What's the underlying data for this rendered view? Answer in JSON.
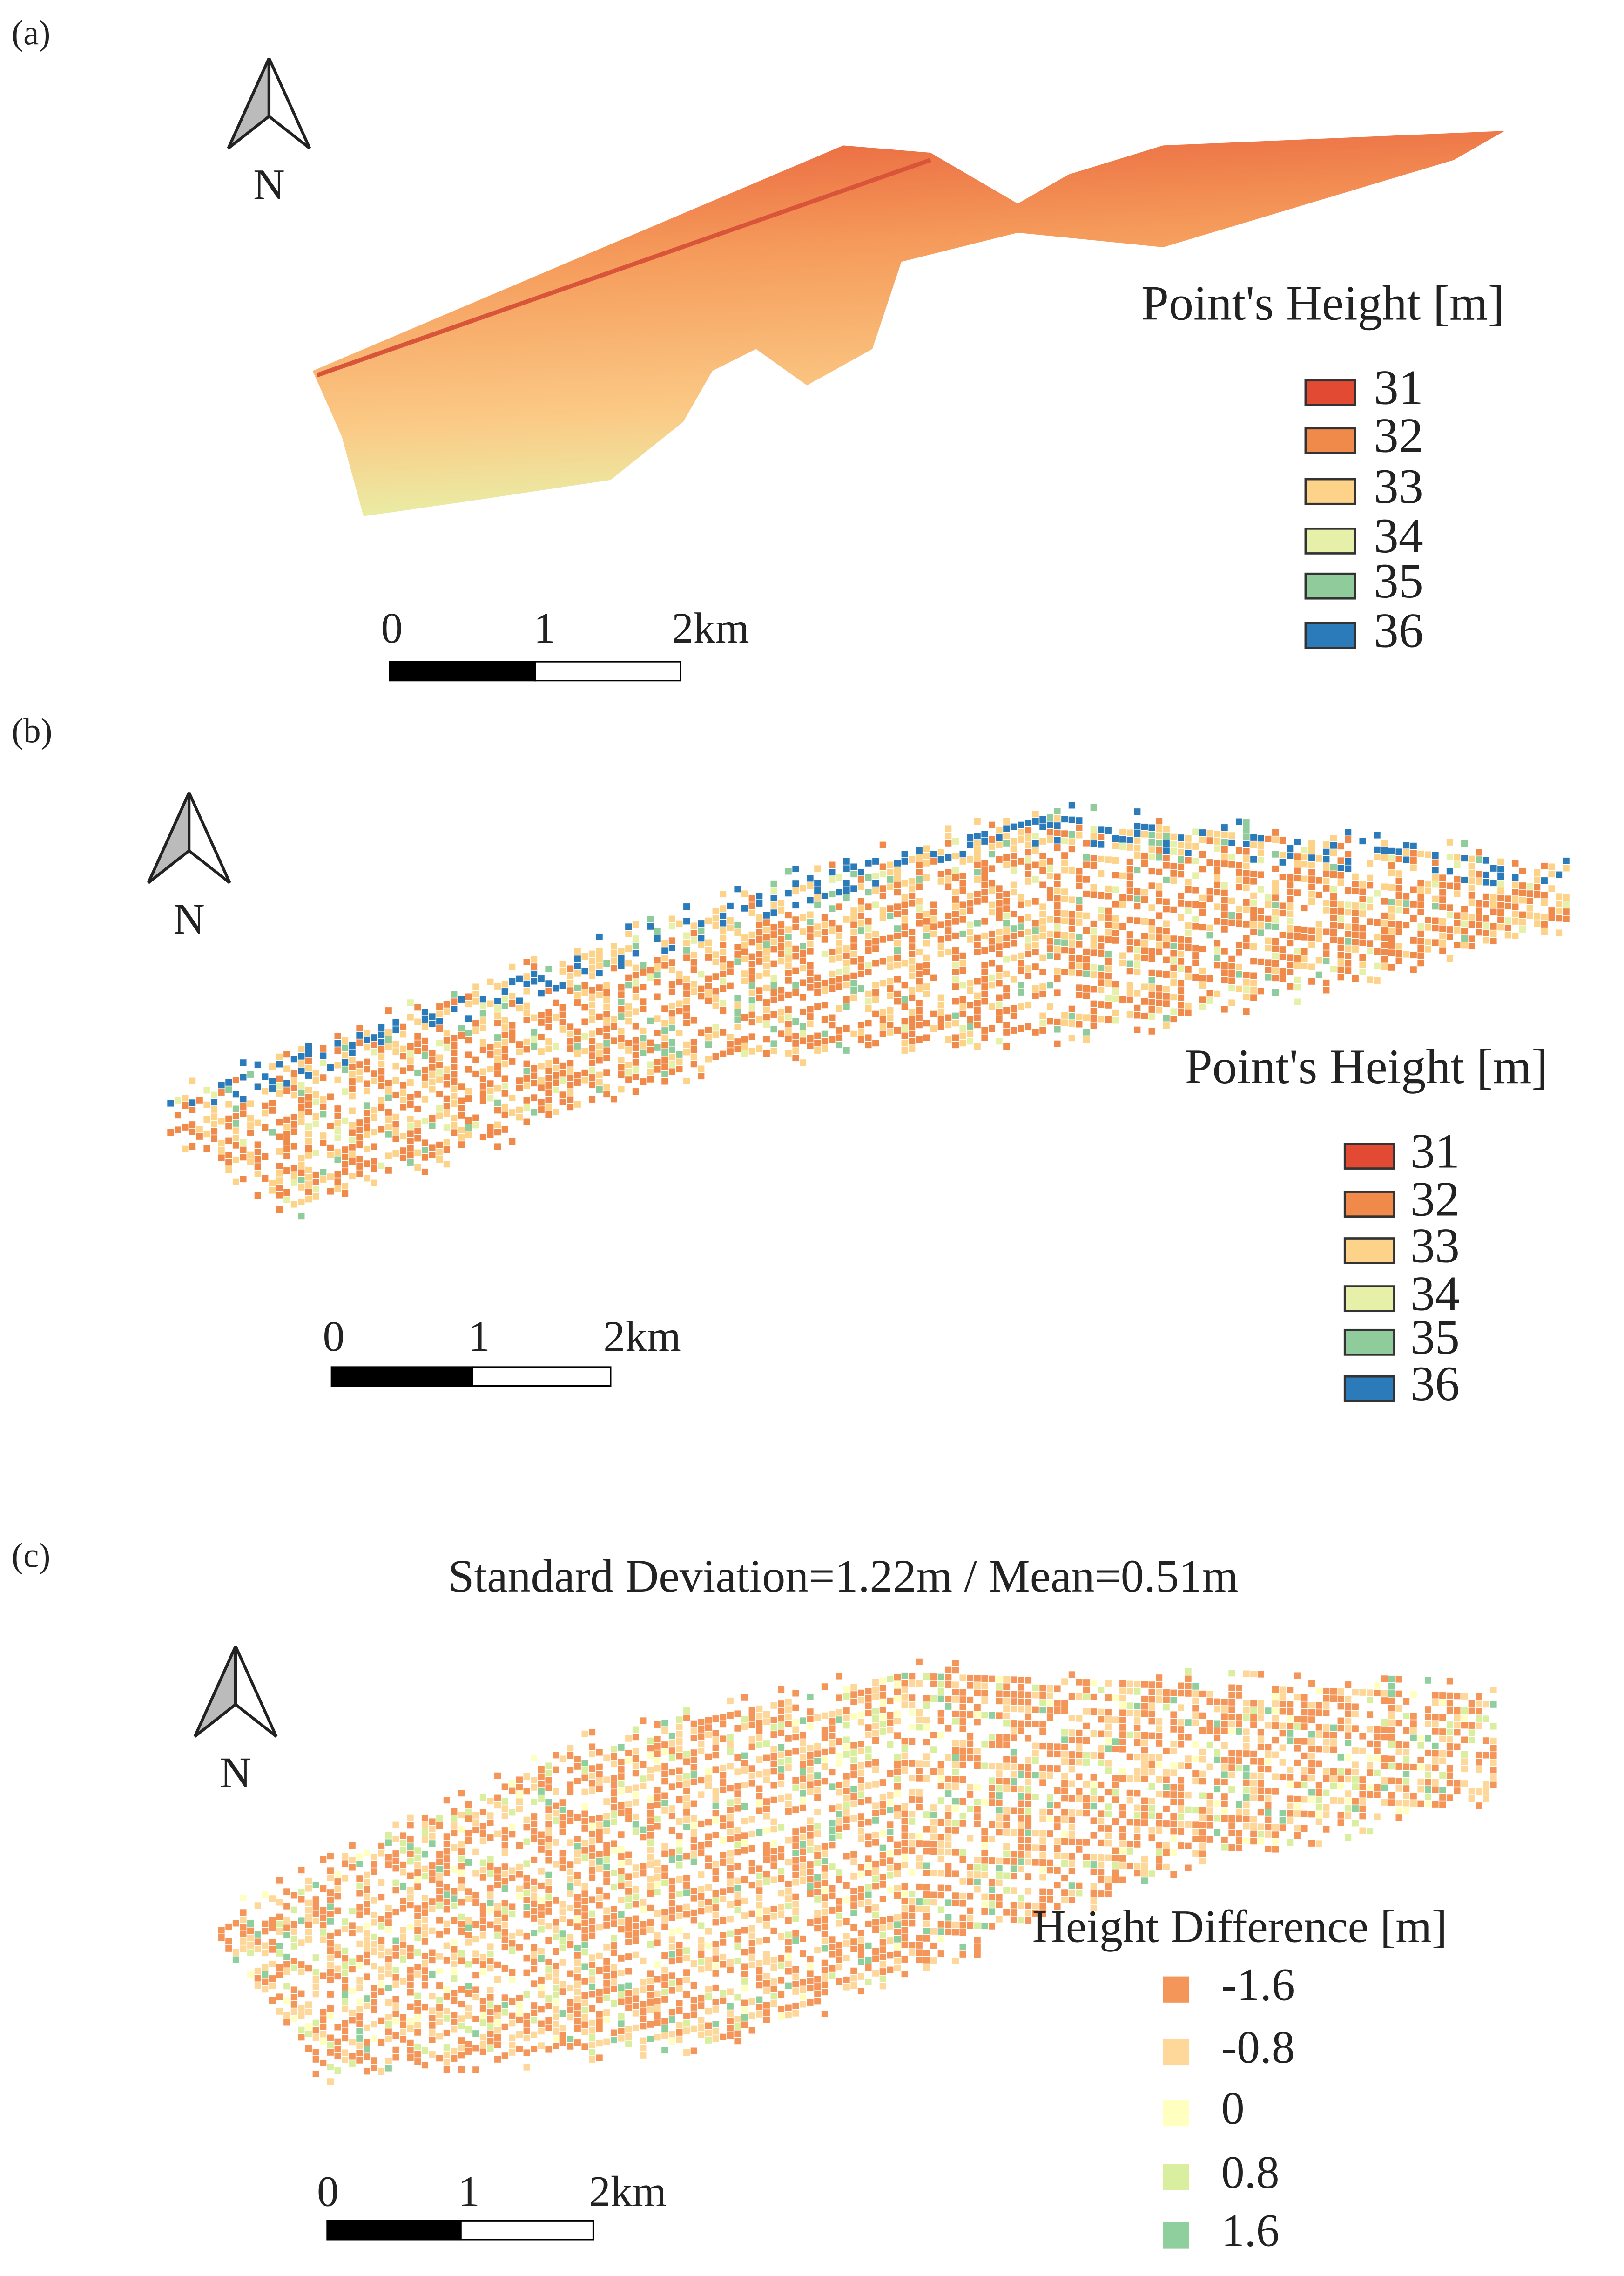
{
  "panels": [
    {
      "label": "(a)",
      "north": "N",
      "legend": {
        "title": "Point's Height [m]",
        "items": [
          {
            "label": "31",
            "color": "#e34a33"
          },
          {
            "label": "32",
            "color": "#f08a4b"
          },
          {
            "label": "33",
            "color": "#fdd38a"
          },
          {
            "label": "34",
            "color": "#e6f0a8"
          },
          {
            "label": "35",
            "color": "#8fcb9b"
          },
          {
            "label": "36",
            "color": "#2b7bba"
          }
        ]
      },
      "scale_bar": [
        "0",
        "1",
        "2km"
      ]
    },
    {
      "label": "(b)",
      "north": "N",
      "legend": {
        "title": "Point's Height [m]",
        "items": [
          {
            "label": "31",
            "color": "#e34a33"
          },
          {
            "label": "32",
            "color": "#f08a4b"
          },
          {
            "label": "33",
            "color": "#fdd38a"
          },
          {
            "label": "34",
            "color": "#e6f0a8"
          },
          {
            "label": "35",
            "color": "#8fcb9b"
          },
          {
            "label": "36",
            "color": "#2b7bba"
          }
        ]
      },
      "scale_bar": [
        "0",
        "1",
        "2km"
      ]
    },
    {
      "label": "(c)",
      "title": "Standard Deviation=1.22m  / Mean=0.51m",
      "north": "N",
      "legend": {
        "title": "Height Difference [m]",
        "items": [
          {
            "label": "-1.6",
            "color": "#f4955a"
          },
          {
            "label": "-0.8",
            "color": "#fdd89a"
          },
          {
            "label": "0",
            "color": "#ffffc0"
          },
          {
            "label": "0.8",
            "color": "#d9ef9f"
          },
          {
            "label": "1.6",
            "color": "#8fcf9e"
          }
        ]
      },
      "scale_bar": [
        "0",
        "1",
        "2km"
      ]
    }
  ]
}
